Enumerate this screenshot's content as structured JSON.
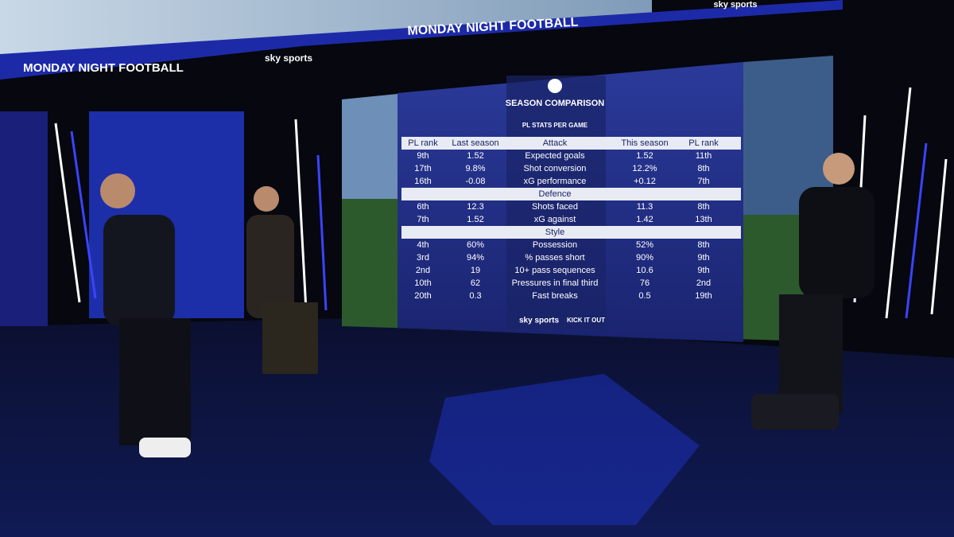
{
  "banner": {
    "title": "MONDAY NIGHT FOOTBALL",
    "logo": "sky sports"
  },
  "table": {
    "title": "SEASON COMPARISON",
    "subtitle": "PL STATS PER GAME",
    "headers": [
      "PL rank",
      "Last season",
      "This season",
      "PL rank"
    ],
    "sections": [
      {
        "name": "Attack",
        "rows": [
          [
            "9th",
            "1.52",
            "Expected goals",
            "1.52",
            "11th"
          ],
          [
            "17th",
            "9.8%",
            "Shot conversion",
            "12.2%",
            "8th"
          ],
          [
            "16th",
            "-0.08",
            "xG performance",
            "+0.12",
            "7th"
          ]
        ]
      },
      {
        "name": "Defence",
        "rows": [
          [
            "6th",
            "12.3",
            "Shots faced",
            "11.3",
            "8th"
          ],
          [
            "7th",
            "1.52",
            "xG against",
            "1.42",
            "13th"
          ]
        ]
      },
      {
        "name": "Style",
        "rows": [
          [
            "4th",
            "60%",
            "Possession",
            "52%",
            "8th"
          ],
          [
            "3rd",
            "94%",
            "% passes short",
            "90%",
            "9th"
          ],
          [
            "2nd",
            "19",
            "10+ pass sequences",
            "10.6",
            "9th"
          ],
          [
            "10th",
            "62",
            "Pressures in final third",
            "76",
            "2nd"
          ],
          [
            "20th",
            "0.3",
            "Fast breaks",
            "0.5",
            "19th"
          ]
        ]
      }
    ]
  },
  "footer": {
    "logos": [
      "sky sports",
      "KICK IT OUT"
    ]
  }
}
